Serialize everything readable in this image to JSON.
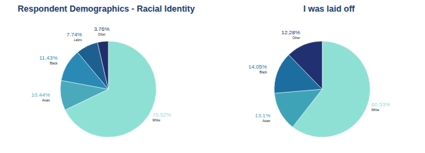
{
  "chart_data": [
    {
      "type": "pie",
      "title": "Respondent Demographics - Racial Identity",
      "categories": [
        "White",
        "Asian",
        "Black",
        "Latinx",
        "Other"
      ],
      "values": [
        70.52,
        10.44,
        11.43,
        7.74,
        3.76
      ],
      "value_labels": [
        "70.52%",
        "10.44%",
        "11.43%",
        "7.74%",
        "3.76%"
      ],
      "colors": [
        "#8ee0d4",
        "#4aaabb",
        "#2a8ab5",
        "#1d5f90",
        "#1f2f6b"
      ],
      "data_labels": true
    },
    {
      "type": "pie",
      "title": "I was laid off",
      "categories": [
        "White",
        "Asian",
        "Black",
        "Other"
      ],
      "values": [
        60.53,
        13.1,
        14.05,
        12.28
      ],
      "value_labels": [
        "60.53%",
        "13.1%",
        "14.05%",
        "12.28%"
      ],
      "colors": [
        "#8ee0d4",
        "#3fa3b8",
        "#1d6ea0",
        "#213070"
      ],
      "data_labels": true
    }
  ]
}
